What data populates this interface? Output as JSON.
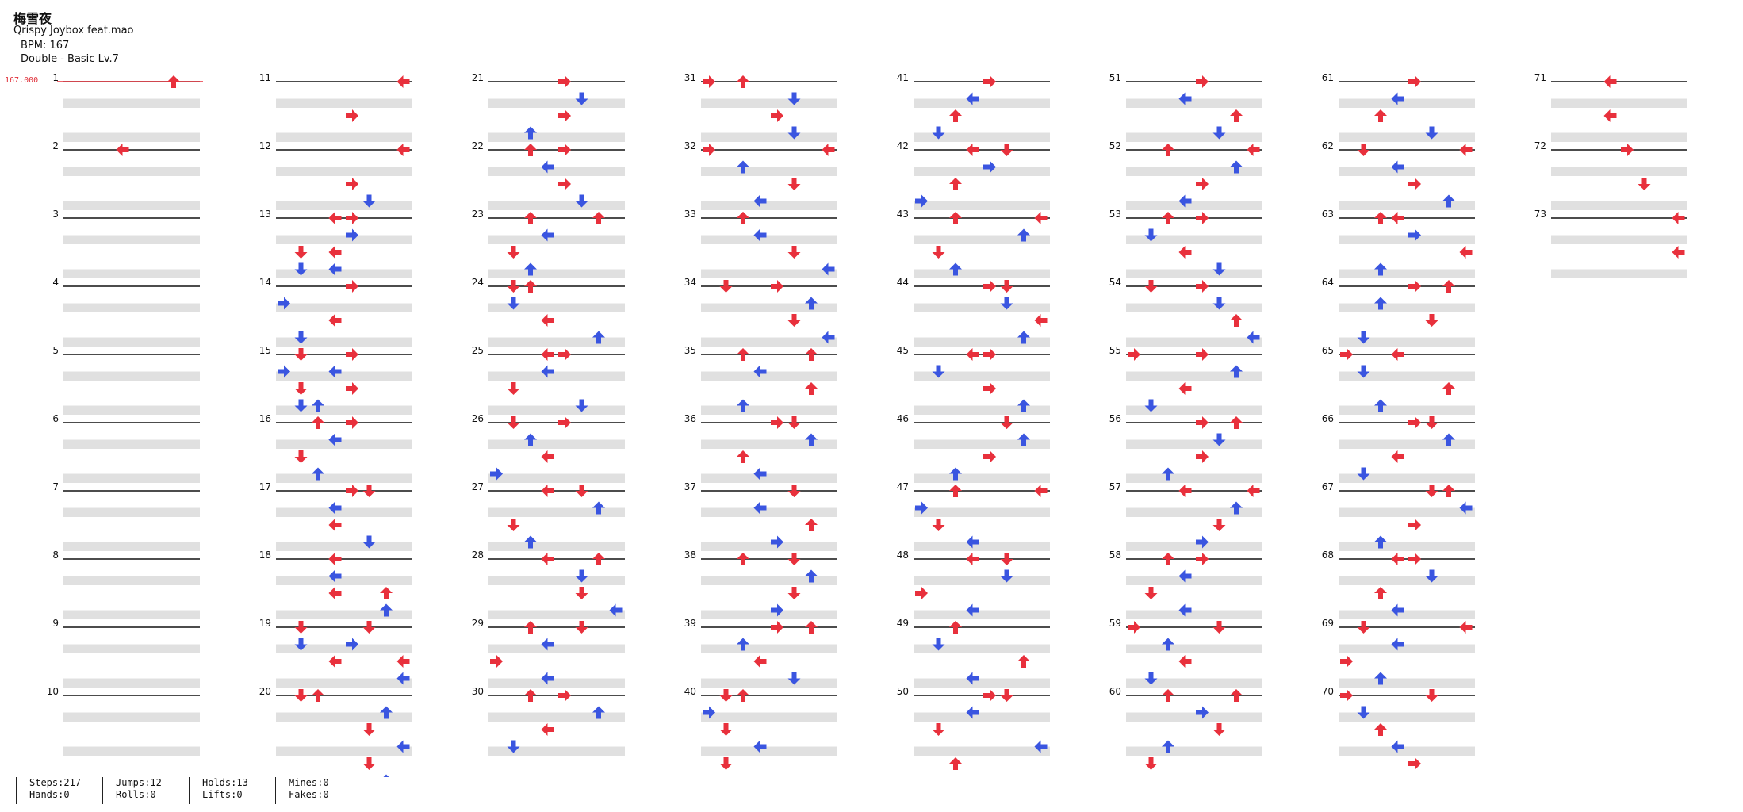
{
  "song": {
    "title": "梅雪夜",
    "artist": "Qrispy Joybox feat.mao",
    "bpm": "BPM: 167",
    "difficulty": "Double - Basic Lv.7"
  },
  "bpm_marker": "167.000",
  "stats": [
    {
      "a": "Steps:217",
      "b": "Hands:0"
    },
    {
      "a": "Jumps:12",
      "b": "Rolls:0"
    },
    {
      "a": "Holds:13",
      "b": "Lifts:0"
    },
    {
      "a": "Mines:0",
      "b": "Fakes:0"
    }
  ],
  "colors": {
    "tap": "#e8303c",
    "alt": "#3a55e0",
    "hold": "#7be07b",
    "band": "#e0e0e0"
  },
  "chart_data": {
    "type": "step-chart",
    "columns_per_measure_block": 8,
    "lanes": [
      "L",
      "D",
      "U",
      "R",
      "L",
      "D",
      "U",
      "R"
    ],
    "measure_count": 73,
    "notes": [
      [
        1,
        0,
        6
      ],
      [
        1,
        8,
        3
      ],
      [
        11,
        0,
        7
      ],
      [
        11,
        4,
        4
      ],
      [
        11,
        8,
        7
      ],
      [
        12,
        0,
        7
      ],
      [
        12,
        4,
        4
      ],
      [
        12,
        6,
        5
      ],
      [
        12,
        8,
        3
      ],
      [
        12,
        10,
        4
      ],
      [
        12,
        12,
        1
      ],
      [
        12,
        14,
        3
      ],
      [
        13,
        0,
        4
      ],
      [
        13,
        4,
        3
      ],
      [
        13,
        6,
        1
      ],
      [
        13,
        10,
        0
      ],
      [
        13,
        12,
        3
      ],
      [
        13,
        14,
        1
      ],
      [
        14,
        0,
        4
      ],
      [
        14,
        4,
        3
      ],
      [
        14,
        8,
        1
      ],
      [
        14,
        10,
        0
      ],
      [
        14,
        12,
        4
      ],
      [
        14,
        14,
        1
      ],
      [
        15,
        0,
        4
      ],
      [
        15,
        2,
        3
      ],
      [
        15,
        4,
        1
      ],
      [
        15,
        6,
        2
      ],
      [
        15,
        8,
        4
      ],
      [
        15,
        10,
        3
      ],
      [
        16,
        0,
        2
      ],
      [
        16,
        2,
        3
      ],
      [
        16,
        4,
        1
      ],
      [
        16,
        6,
        2
      ],
      [
        16,
        8,
        4
      ],
      [
        16,
        10,
        3
      ],
      [
        17,
        0,
        5
      ],
      [
        17,
        4,
        3
      ],
      [
        17,
        6,
        5
      ],
      [
        17,
        8,
        3
      ],
      [
        17,
        10,
        3
      ],
      [
        17,
        12,
        6
      ],
      [
        18,
        0,
        3
      ],
      [
        18,
        4,
        3
      ],
      [
        18,
        6,
        6
      ],
      [
        18,
        8,
        5
      ],
      [
        18,
        10,
        4
      ],
      [
        18,
        12,
        7
      ],
      [
        19,
        0,
        1
      ],
      [
        19,
        2,
        1
      ],
      [
        19,
        4,
        3
      ],
      [
        19,
        6,
        7
      ],
      [
        19,
        8,
        1
      ],
      [
        19,
        10,
        6
      ],
      [
        20,
        0,
        2
      ],
      [
        20,
        4,
        5
      ],
      [
        20,
        6,
        7
      ],
      [
        20,
        8,
        5
      ],
      [
        20,
        10,
        6
      ],
      [
        20,
        12,
        5
      ],
      [
        21,
        0,
        4
      ],
      [
        21,
        2,
        5
      ],
      [
        21,
        4,
        4
      ],
      [
        21,
        6,
        2
      ],
      [
        21,
        8,
        2
      ],
      [
        22,
        0,
        4
      ],
      [
        22,
        2,
        3
      ],
      [
        22,
        4,
        4
      ],
      [
        22,
        6,
        5
      ],
      [
        22,
        8,
        6
      ],
      [
        23,
        0,
        2
      ],
      [
        23,
        2,
        3
      ],
      [
        23,
        4,
        1
      ],
      [
        23,
        6,
        2
      ],
      [
        23,
        8,
        1
      ],
      [
        24,
        0,
        2
      ],
      [
        24,
        2,
        1
      ],
      [
        24,
        4,
        3
      ],
      [
        24,
        6,
        6
      ],
      [
        24,
        8,
        3
      ],
      [
        25,
        0,
        4
      ],
      [
        25,
        2,
        3
      ],
      [
        25,
        4,
        1
      ],
      [
        25,
        6,
        5
      ],
      [
        25,
        8,
        4
      ],
      [
        26,
        0,
        1
      ],
      [
        26,
        2,
        2
      ],
      [
        26,
        4,
        3
      ],
      [
        26,
        6,
        0
      ],
      [
        26,
        8,
        5
      ],
      [
        27,
        0,
        3
      ],
      [
        27,
        2,
        6
      ],
      [
        27,
        4,
        1
      ],
      [
        27,
        6,
        2
      ],
      [
        27,
        8,
        3
      ],
      [
        28,
        0,
        6
      ],
      [
        28,
        2,
        5
      ],
      [
        28,
        4,
        5
      ],
      [
        28,
        6,
        7
      ],
      [
        28,
        8,
        5
      ],
      [
        29,
        0,
        2
      ],
      [
        29,
        2,
        3
      ],
      [
        29,
        4,
        0
      ],
      [
        29,
        6,
        3
      ],
      [
        29,
        8,
        2
      ],
      [
        30,
        0,
        4
      ],
      [
        30,
        2,
        6
      ],
      [
        30,
        4,
        3
      ],
      [
        30,
        6,
        1
      ],
      [
        31,
        0,
        0
      ],
      [
        31,
        0,
        2
      ],
      [
        31,
        2,
        5
      ],
      [
        31,
        4,
        4
      ],
      [
        31,
        6,
        5
      ],
      [
        31,
        8,
        7
      ],
      [
        32,
        0,
        0
      ],
      [
        32,
        2,
        2
      ],
      [
        32,
        4,
        5
      ],
      [
        32,
        6,
        3
      ],
      [
        32,
        8,
        2
      ],
      [
        33,
        0,
        2
      ],
      [
        33,
        2,
        3
      ],
      [
        33,
        4,
        5
      ],
      [
        33,
        6,
        7
      ],
      [
        33,
        8,
        1
      ],
      [
        34,
        0,
        4
      ],
      [
        34,
        2,
        6
      ],
      [
        34,
        4,
        5
      ],
      [
        34,
        6,
        7
      ],
      [
        34,
        8,
        2
      ],
      [
        35,
        0,
        6
      ],
      [
        35,
        2,
        3
      ],
      [
        35,
        4,
        6
      ],
      [
        35,
        6,
        2
      ],
      [
        35,
        8,
        4
      ],
      [
        36,
        0,
        5
      ],
      [
        36,
        2,
        6
      ],
      [
        36,
        4,
        2
      ],
      [
        36,
        6,
        3
      ],
      [
        36,
        8,
        5
      ],
      [
        37,
        0,
        5
      ],
      [
        37,
        2,
        3
      ],
      [
        37,
        4,
        6
      ],
      [
        37,
        6,
        4
      ],
      [
        37,
        8,
        2
      ],
      [
        38,
        0,
        5
      ],
      [
        38,
        2,
        6
      ],
      [
        38,
        4,
        5
      ],
      [
        38,
        6,
        4
      ],
      [
        38,
        8,
        6
      ],
      [
        39,
        0,
        4
      ],
      [
        39,
        2,
        2
      ],
      [
        39,
        4,
        3
      ],
      [
        39,
        6,
        5
      ],
      [
        39,
        8,
        2
      ],
      [
        40,
        0,
        1
      ],
      [
        40,
        2,
        0
      ],
      [
        40,
        4,
        1
      ],
      [
        40,
        6,
        3
      ],
      [
        40,
        8,
        1
      ],
      [
        41,
        0,
        4
      ],
      [
        41,
        2,
        3
      ],
      [
        41,
        4,
        2
      ],
      [
        41,
        6,
        1
      ],
      [
        41,
        8,
        3
      ],
      [
        42,
        0,
        5
      ],
      [
        42,
        2,
        4
      ],
      [
        42,
        4,
        2
      ],
      [
        42,
        6,
        0
      ],
      [
        42,
        8,
        2
      ],
      [
        43,
        0,
        7
      ],
      [
        43,
        2,
        6
      ],
      [
        43,
        4,
        1
      ],
      [
        43,
        6,
        2
      ],
      [
        43,
        8,
        5
      ],
      [
        44,
        0,
        4
      ],
      [
        44,
        2,
        5
      ],
      [
        44,
        4,
        7
      ],
      [
        44,
        6,
        6
      ],
      [
        44,
        8,
        4
      ],
      [
        45,
        0,
        3
      ],
      [
        45,
        2,
        1
      ],
      [
        45,
        4,
        4
      ],
      [
        45,
        6,
        6
      ],
      [
        45,
        8,
        5
      ],
      [
        46,
        0,
        5
      ],
      [
        46,
        2,
        6
      ],
      [
        46,
        4,
        4
      ],
      [
        46,
        6,
        2
      ],
      [
        46,
        8,
        7
      ],
      [
        47,
        0,
        2
      ],
      [
        47,
        2,
        0
      ],
      [
        47,
        4,
        1
      ],
      [
        47,
        6,
        3
      ],
      [
        47,
        8,
        5
      ],
      [
        48,
        0,
        3
      ],
      [
        48,
        2,
        5
      ],
      [
        48,
        4,
        0
      ],
      [
        48,
        6,
        3
      ],
      [
        48,
        8,
        2
      ],
      [
        49,
        0,
        2
      ],
      [
        49,
        2,
        1
      ],
      [
        49,
        4,
        6
      ],
      [
        49,
        6,
        3
      ],
      [
        49,
        8,
        5
      ],
      [
        50,
        0,
        4
      ],
      [
        50,
        2,
        3
      ],
      [
        50,
        4,
        1
      ],
      [
        50,
        6,
        7
      ],
      [
        50,
        8,
        2
      ],
      [
        51,
        0,
        4
      ],
      [
        51,
        2,
        3
      ],
      [
        51,
        4,
        6
      ],
      [
        51,
        6,
        5
      ],
      [
        51,
        8,
        2
      ],
      [
        52,
        0,
        7
      ],
      [
        52,
        2,
        6
      ],
      [
        52,
        4,
        4
      ],
      [
        52,
        6,
        3
      ],
      [
        52,
        8,
        4
      ],
      [
        53,
        0,
        2
      ],
      [
        53,
        2,
        1
      ],
      [
        53,
        4,
        3
      ],
      [
        53,
        6,
        5
      ],
      [
        53,
        8,
        1
      ],
      [
        54,
        0,
        4
      ],
      [
        54,
        2,
        5
      ],
      [
        54,
        4,
        6
      ],
      [
        54,
        6,
        7
      ],
      [
        54,
        8,
        4
      ],
      [
        55,
        0,
        0
      ],
      [
        55,
        2,
        6
      ],
      [
        55,
        4,
        3
      ],
      [
        55,
        6,
        1
      ],
      [
        55,
        8,
        4
      ],
      [
        56,
        0,
        6
      ],
      [
        56,
        2,
        5
      ],
      [
        56,
        4,
        4
      ],
      [
        56,
        6,
        2
      ],
      [
        56,
        8,
        3
      ],
      [
        57,
        0,
        7
      ],
      [
        57,
        2,
        6
      ],
      [
        57,
        4,
        5
      ],
      [
        57,
        6,
        4
      ],
      [
        57,
        8,
        2
      ],
      [
        58,
        0,
        4
      ],
      [
        58,
        2,
        3
      ],
      [
        58,
        4,
        1
      ],
      [
        58,
        6,
        3
      ],
      [
        58,
        8,
        5
      ],
      [
        59,
        0,
        0
      ],
      [
        59,
        2,
        2
      ],
      [
        59,
        4,
        3
      ],
      [
        59,
        6,
        1
      ],
      [
        59,
        8,
        2
      ],
      [
        60,
        0,
        6
      ],
      [
        60,
        2,
        4
      ],
      [
        60,
        4,
        5
      ],
      [
        60,
        6,
        2
      ],
      [
        60,
        8,
        1
      ],
      [
        61,
        0,
        4
      ],
      [
        61,
        2,
        3
      ],
      [
        61,
        4,
        2
      ],
      [
        61,
        6,
        5
      ],
      [
        61,
        8,
        7
      ],
      [
        62,
        0,
        1
      ],
      [
        62,
        2,
        3
      ],
      [
        62,
        4,
        4
      ],
      [
        62,
        6,
        6
      ],
      [
        62,
        8,
        2
      ],
      [
        63,
        0,
        3
      ],
      [
        63,
        2,
        4
      ],
      [
        63,
        4,
        7
      ],
      [
        63,
        6,
        2
      ],
      [
        63,
        8,
        6
      ],
      [
        64,
        0,
        4
      ],
      [
        64,
        2,
        2
      ],
      [
        64,
        4,
        5
      ],
      [
        64,
        6,
        1
      ],
      [
        64,
        8,
        3
      ],
      [
        65,
        0,
        0
      ],
      [
        65,
        2,
        1
      ],
      [
        65,
        4,
        6
      ],
      [
        65,
        6,
        2
      ],
      [
        65,
        8,
        4
      ],
      [
        66,
        0,
        5
      ],
      [
        66,
        2,
        6
      ],
      [
        66,
        4,
        3
      ],
      [
        66,
        6,
        1
      ],
      [
        66,
        8,
        5
      ],
      [
        67,
        0,
        6
      ],
      [
        67,
        2,
        7
      ],
      [
        67,
        4,
        4
      ],
      [
        67,
        6,
        2
      ],
      [
        67,
        8,
        3
      ],
      [
        68,
        0,
        4
      ],
      [
        68,
        2,
        5
      ],
      [
        68,
        4,
        2
      ],
      [
        68,
        6,
        3
      ],
      [
        68,
        8,
        7
      ],
      [
        69,
        0,
        1
      ],
      [
        69,
        2,
        3
      ],
      [
        69,
        4,
        0
      ],
      [
        69,
        6,
        2
      ],
      [
        69,
        8,
        5
      ],
      [
        70,
        0,
        0
      ],
      [
        70,
        2,
        1
      ],
      [
        70,
        4,
        2
      ],
      [
        70,
        6,
        3
      ],
      [
        70,
        8,
        4
      ],
      [
        71,
        0,
        3
      ],
      [
        71,
        4,
        3
      ],
      [
        72,
        0,
        4
      ],
      [
        72,
        4,
        5
      ],
      [
        73,
        0,
        7
      ],
      [
        73,
        4,
        7
      ]
    ]
  }
}
